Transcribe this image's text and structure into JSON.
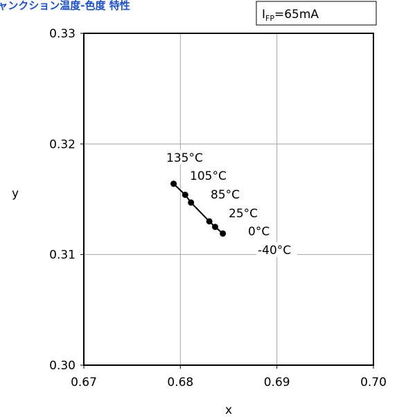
{
  "chart_data": {
    "type": "scatter",
    "title": "ジャンクション温度-色度 特性",
    "condition": {
      "main": "I",
      "sub": "FP",
      "value": "=65mA"
    },
    "xlabel": "x",
    "ylabel": "y",
    "xlim": [
      0.67,
      0.7
    ],
    "ylim": [
      0.3,
      0.33
    ],
    "x_ticks": [
      "0.67",
      "0.68",
      "0.69",
      "0.70"
    ],
    "y_ticks": [
      "0.30",
      "0.31",
      "0.32",
      "0.33"
    ],
    "grid": true,
    "line_color": "#000000",
    "series": [
      {
        "points": [
          {
            "x": 0.6793,
            "y": 0.3164,
            "label": "135°C"
          },
          {
            "x": 0.6805,
            "y": 0.3154,
            "label": "105°C"
          },
          {
            "x": 0.6811,
            "y": 0.3147,
            "label": "85°C"
          },
          {
            "x": 0.683,
            "y": 0.313,
            "label": "25°C"
          },
          {
            "x": 0.6836,
            "y": 0.3125,
            "label": "0°C"
          },
          {
            "x": 0.6844,
            "y": 0.3119,
            "label": "-40°C"
          }
        ]
      }
    ]
  }
}
